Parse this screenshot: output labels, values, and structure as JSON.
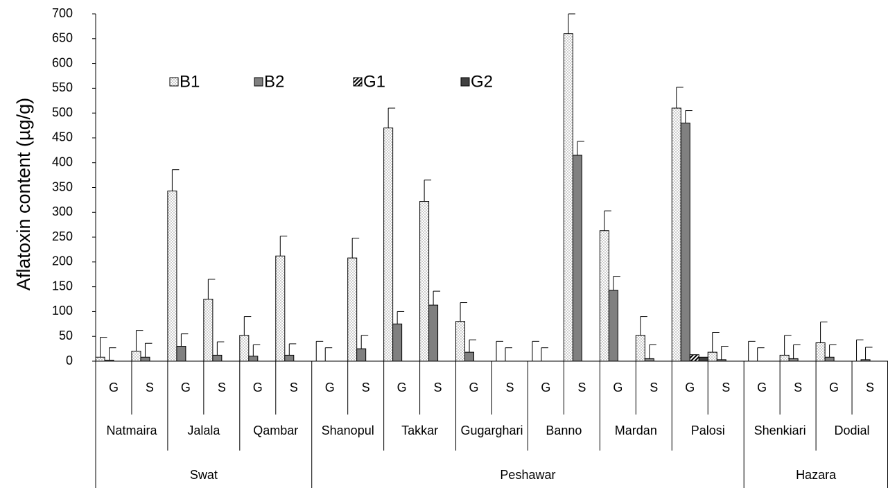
{
  "chart_data": {
    "type": "bar",
    "y_label": "Aflatoxin content (µg/g)",
    "categories": [
      "G",
      "S",
      "G",
      "S",
      "G",
      "S",
      "G",
      "S",
      "G",
      "S",
      "G",
      "S",
      "G",
      "S",
      "G",
      "S",
      "G",
      "S",
      "G",
      "S",
      "G",
      "S"
    ],
    "regions": [
      {
        "name": "Swat",
        "locations": [
          "Natmaira",
          "Jalala",
          "Qambar"
        ]
      },
      {
        "name": "Peshawar",
        "locations": [
          "Shanopul",
          "Takkar",
          "Gugarghari",
          "Banno",
          "Mardan",
          "Palosi"
        ]
      },
      {
        "name": "Hazara",
        "locations": [
          "Shenkiari",
          "Dodial"
        ]
      }
    ],
    "series": [
      {
        "name": "B1",
        "color": "#ffffff",
        "pattern": "dots",
        "values": [
          8,
          20,
          343,
          125,
          52,
          212,
          0,
          208,
          470,
          322,
          80,
          0,
          0,
          660,
          263,
          52,
          510,
          18,
          0,
          12,
          37,
          0
        ],
        "errors": [
          40,
          42,
          43,
          40,
          38,
          40,
          40,
          40,
          40,
          43,
          38,
          40,
          40,
          40,
          40,
          38,
          42,
          40,
          40,
          40,
          42,
          43
        ]
      },
      {
        "name": "B2",
        "color": "#808080",
        "values": [
          2,
          8,
          30,
          12,
          10,
          12,
          0,
          25,
          75,
          113,
          18,
          0,
          0,
          415,
          143,
          5,
          480,
          3,
          0,
          5,
          8,
          3
        ],
        "errors": [
          25,
          28,
          25,
          27,
          23,
          23,
          27,
          27,
          25,
          28,
          25,
          27,
          27,
          28,
          28,
          28,
          25,
          27,
          27,
          28,
          25,
          25
        ]
      },
      {
        "name": "G1",
        "color": "#ffffff",
        "pattern": "hatch",
        "values": [
          0,
          0,
          0,
          0,
          0,
          0,
          0,
          0,
          0,
          0,
          0,
          0,
          0,
          0,
          0,
          0,
          13,
          0,
          0,
          0,
          0,
          0
        ]
      },
      {
        "name": "G2",
        "color": "#404040",
        "values": [
          0,
          0,
          0,
          0,
          0,
          0,
          0,
          0,
          0,
          0,
          0,
          0,
          0,
          0,
          0,
          0,
          8,
          0,
          0,
          0,
          0,
          0
        ]
      }
    ],
    "ylim": [
      0,
      700
    ],
    "yticks": [
      0,
      50,
      100,
      150,
      200,
      250,
      300,
      350,
      400,
      450,
      500,
      550,
      600,
      650,
      700
    ]
  }
}
